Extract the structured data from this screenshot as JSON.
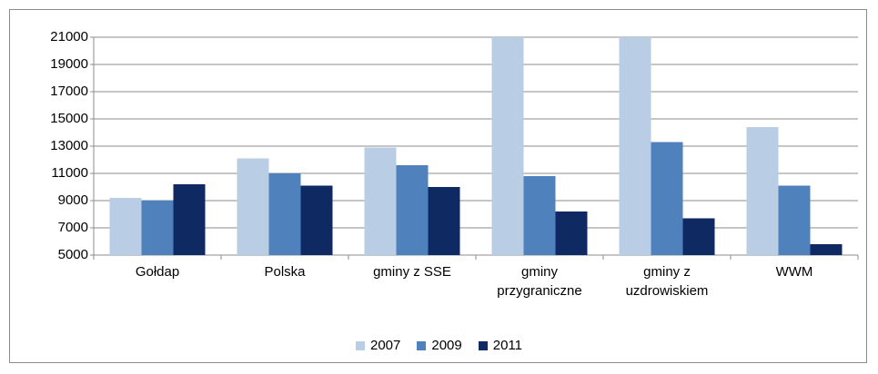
{
  "chart_data": {
    "type": "bar",
    "categories": [
      "Gołdap",
      "Polska",
      "gminy z SSE",
      "gminy przygraniczne",
      "gminy z uzdrowiskiem",
      "WWM"
    ],
    "series": [
      {
        "name": "2007",
        "color": "#b9cde5",
        "values": [
          9200,
          12100,
          12900,
          21000,
          21000,
          14400
        ]
      },
      {
        "name": "2009",
        "color": "#4f81bd",
        "values": [
          9000,
          11000,
          11600,
          10800,
          13300,
          10100
        ]
      },
      {
        "name": "2011",
        "color": "#0f2a63",
        "values": [
          10200,
          10100,
          10000,
          8200,
          7700,
          5800
        ]
      }
    ],
    "ylim": [
      5000,
      21000
    ],
    "yticks": [
      5000,
      7000,
      9000,
      11000,
      13000,
      15000,
      17000,
      19000,
      21000
    ],
    "grid": true,
    "legend": "bottom"
  }
}
